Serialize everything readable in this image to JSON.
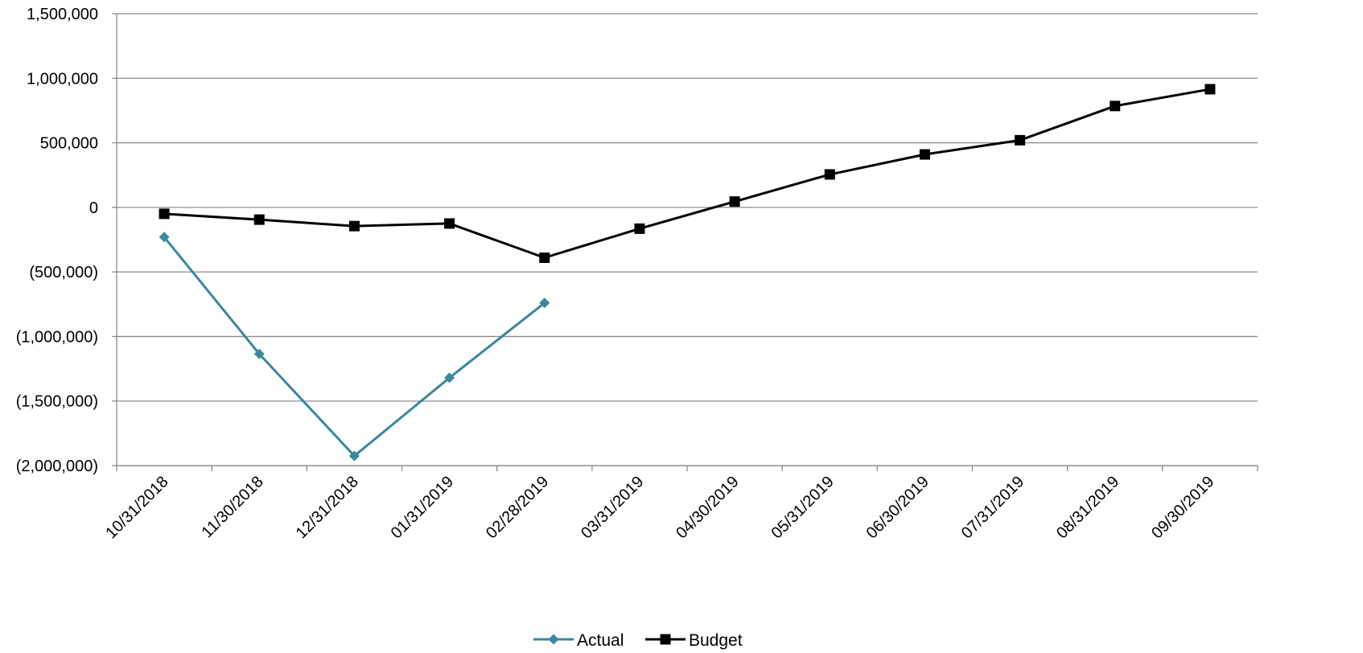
{
  "chart_data": {
    "type": "line",
    "categories": [
      "10/31/2018",
      "11/30/2018",
      "12/31/2018",
      "01/31/2019",
      "02/28/2019",
      "03/31/2019",
      "04/30/2019",
      "05/31/2019",
      "06/30/2019",
      "07/31/2019",
      "08/31/2019",
      "09/30/2019"
    ],
    "series": [
      {
        "name": "Actual",
        "color": "#3a87a0",
        "marker": "diamond",
        "values": [
          -230000,
          -1135000,
          -1925000,
          -1320000,
          -740000,
          null,
          null,
          null,
          null,
          null,
          null,
          null
        ]
      },
      {
        "name": "Budget",
        "color": "#000000",
        "marker": "square",
        "values": [
          -50000,
          -95000,
          -145000,
          -125000,
          -390000,
          -165000,
          45000,
          255000,
          410000,
          520000,
          785000,
          915000
        ]
      }
    ],
    "yticks": [
      "1,500,000",
      "1,000,000",
      "500,000",
      "0",
      "(500,000)",
      "(1,000,000)",
      "(1,500,000)",
      "(2,000,000)"
    ],
    "ylim": [
      -2000000,
      1500000
    ],
    "grid": true,
    "legend_position": "bottom",
    "title": "",
    "xlabel": "",
    "ylabel": ""
  }
}
